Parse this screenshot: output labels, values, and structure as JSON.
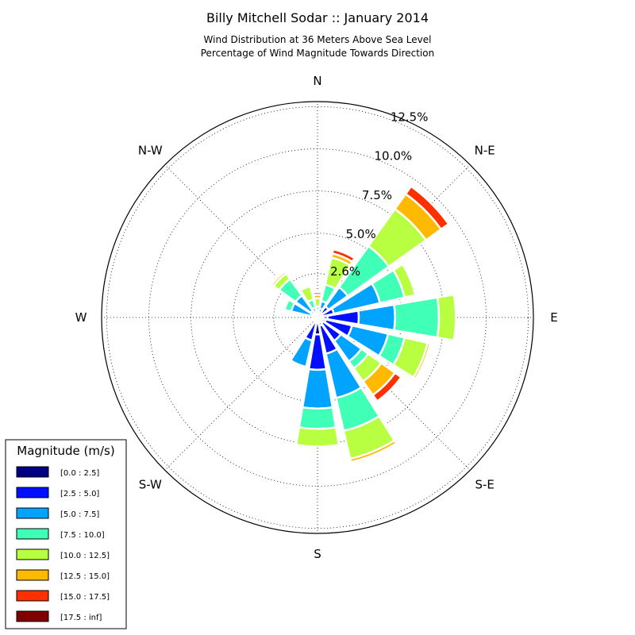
{
  "chart_data": {
    "type": "windrose",
    "title": "Billy Mitchell Sodar :: January 2014",
    "subtitle_lines": [
      "Wind Distribution at 36 Meters Above Sea Level",
      "Percentage of Wind Magnitude Towards Direction"
    ],
    "rmax": 12.8,
    "rticks": [
      2.6,
      5.0,
      7.5,
      10.0,
      12.5
    ],
    "rtick_labels": [
      "2.6%",
      "5.0%",
      "7.5%",
      "10.0%",
      "12.5%"
    ],
    "direction_labels": [
      {
        "label": "N",
        "angle": 0
      },
      {
        "label": "N-E",
        "angle": 45
      },
      {
        "label": "E",
        "angle": 90
      },
      {
        "label": "S-E",
        "angle": 135
      },
      {
        "label": "S",
        "angle": 180
      },
      {
        "label": "S-W",
        "angle": 225
      },
      {
        "label": "W",
        "angle": 270
      },
      {
        "label": "N-W",
        "angle": 315
      }
    ],
    "bins": [
      "[0.0 : 2.5]",
      "[2.5 : 5.0]",
      "[5.0 : 7.5]",
      "[7.5 : 10.0]",
      "[10.0 : 12.5]",
      "[12.5 : 15.0]",
      "[15.0 : 17.5]",
      "[17.5 : inf]"
    ],
    "colors": [
      "#000080",
      "#0010ff",
      "#00a4ff",
      "#40ffb7",
      "#b7ff40",
      "#ffb900",
      "#ff3000",
      "#800000"
    ],
    "legend_title": "Magnitude (m/s)",
    "sectors": [
      {
        "angle": 0,
        "values": [
          0.2,
          0.05,
          0.2,
          0.2,
          0.5,
          0.2,
          0.15,
          0
        ]
      },
      {
        "angle": 22.5,
        "values": [
          0.2,
          0.35,
          0.45,
          1.0,
          1.65,
          0.25,
          0.25,
          0
        ]
      },
      {
        "angle": 45,
        "values": [
          0.35,
          0.45,
          1.4,
          3.0,
          2.7,
          1.1,
          0.55,
          0
        ]
      },
      {
        "angle": 67.5,
        "values": [
          0.3,
          0.7,
          2.8,
          1.5,
          0.65,
          0.1,
          0,
          0
        ]
      },
      {
        "angle": 90,
        "values": [
          0.6,
          1.85,
          2.15,
          2.6,
          1.0,
          0,
          0,
          0
        ]
      },
      {
        "angle": 112.5,
        "values": [
          0.5,
          1.6,
          2.2,
          1.0,
          1.4,
          0.15,
          0,
          0
        ]
      },
      {
        "angle": 135,
        "values": [
          0.4,
          1.3,
          1.5,
          0.5,
          0.95,
          1.0,
          0.45,
          0
        ]
      },
      {
        "angle": 157.5,
        "values": [
          0.5,
          1.7,
          2.7,
          2.0,
          1.7,
          0.2,
          0,
          0
        ]
      },
      {
        "angle": 180,
        "values": [
          1.0,
          2.1,
          2.3,
          1.2,
          1.05,
          0,
          0,
          0
        ]
      },
      {
        "angle": 202.5,
        "values": [
          0.3,
          1.1,
          1.6,
          0,
          0,
          0,
          0,
          0
        ]
      },
      {
        "angle": 225,
        "values": [
          0.1,
          0.1,
          0,
          0,
          0,
          0,
          0,
          0
        ]
      },
      {
        "angle": 247.5,
        "values": [
          0.05,
          0.15,
          0,
          0,
          0,
          0,
          0,
          0
        ]
      },
      {
        "angle": 270,
        "values": [
          0.05,
          0.05,
          0,
          0,
          0,
          0,
          0,
          0
        ]
      },
      {
        "angle": 292.5,
        "values": [
          0.2,
          0.2,
          1.2,
          0.4,
          0,
          0,
          0,
          0
        ]
      },
      {
        "angle": 315,
        "values": [
          0.2,
          0.3,
          1.1,
          1.2,
          0.4,
          0.15,
          0.1,
          0
        ]
      },
      {
        "angle": 337.5,
        "values": [
          0.1,
          0.2,
          0.3,
          0.5,
          0.8,
          0.1,
          0,
          0
        ]
      }
    ]
  }
}
